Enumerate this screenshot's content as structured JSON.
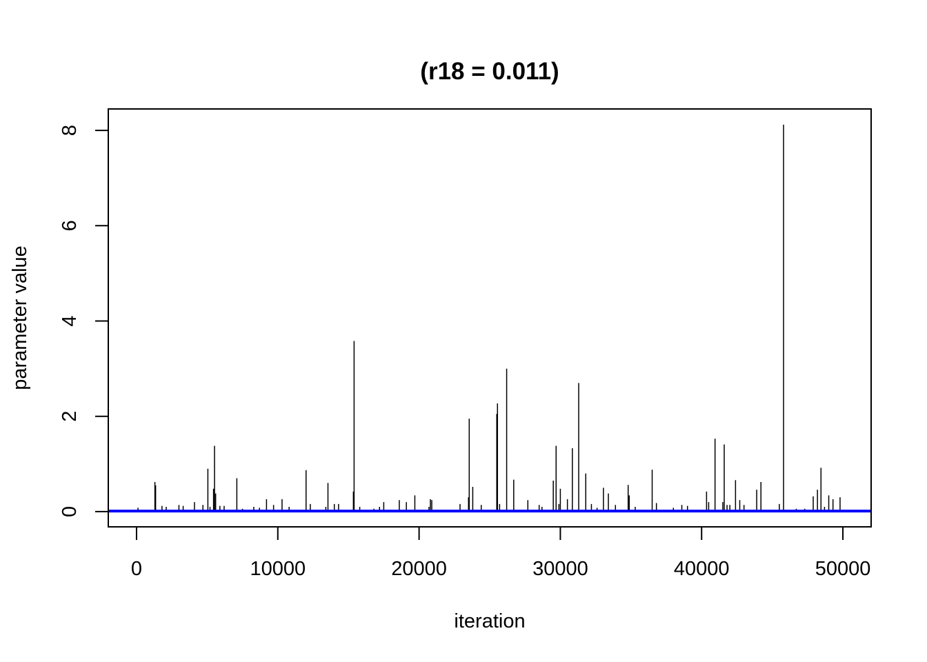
{
  "chart_data": {
    "type": "line",
    "title": "(r18 = 0.011)",
    "xlabel": "iteration",
    "ylabel": "parameter value",
    "xlim": [
      -2000,
      52000
    ],
    "ylim": [
      -0.32,
      8.45
    ],
    "x_ticks": [
      0,
      10000,
      20000,
      30000,
      40000,
      50000
    ],
    "x_tick_labels": [
      "0",
      "10000",
      "20000",
      "30000",
      "40000",
      "50000"
    ],
    "y_ticks": [
      0,
      2,
      4,
      6,
      8
    ],
    "y_tick_labels": [
      "0",
      "2",
      "4",
      "6",
      "8"
    ],
    "grid": false,
    "legend": "none",
    "series": [
      {
        "color": "#000000",
        "n_iterations": 50000,
        "baseline": 0.011,
        "spikes": [
          [
            100,
            0.08
          ],
          [
            1300,
            0.62
          ],
          [
            1350,
            0.55
          ],
          [
            1800,
            0.12
          ],
          [
            2100,
            0.1
          ],
          [
            3000,
            0.14
          ],
          [
            3300,
            0.12
          ],
          [
            4100,
            0.2
          ],
          [
            4700,
            0.14
          ],
          [
            5050,
            0.9
          ],
          [
            5200,
            0.1
          ],
          [
            5450,
            0.48
          ],
          [
            5520,
            1.38
          ],
          [
            5600,
            0.38
          ],
          [
            5900,
            0.12
          ],
          [
            6200,
            0.12
          ],
          [
            7100,
            0.7
          ],
          [
            7500,
            0.06
          ],
          [
            8300,
            0.1
          ],
          [
            8700,
            0.08
          ],
          [
            9200,
            0.26
          ],
          [
            9700,
            0.14
          ],
          [
            10300,
            0.26
          ],
          [
            10800,
            0.1
          ],
          [
            12000,
            0.87
          ],
          [
            12300,
            0.16
          ],
          [
            13400,
            0.1
          ],
          [
            13550,
            0.6
          ],
          [
            14000,
            0.16
          ],
          [
            14300,
            0.16
          ],
          [
            15350,
            0.42
          ],
          [
            15400,
            3.58
          ],
          [
            15800,
            0.1
          ],
          [
            16800,
            0.06
          ],
          [
            17200,
            0.1
          ],
          [
            17500,
            0.2
          ],
          [
            18600,
            0.24
          ],
          [
            19100,
            0.2
          ],
          [
            19700,
            0.34
          ],
          [
            20700,
            0.1
          ],
          [
            20800,
            0.26
          ],
          [
            20900,
            0.24
          ],
          [
            22900,
            0.16
          ],
          [
            23500,
            0.3
          ],
          [
            23550,
            1.95
          ],
          [
            23800,
            0.52
          ],
          [
            24400,
            0.14
          ],
          [
            25500,
            2.05
          ],
          [
            25550,
            2.27
          ],
          [
            25700,
            0.16
          ],
          [
            26200,
            3.0
          ],
          [
            26700,
            0.67
          ],
          [
            27700,
            0.24
          ],
          [
            28500,
            0.14
          ],
          [
            28700,
            0.1
          ],
          [
            29500,
            0.65
          ],
          [
            29700,
            1.38
          ],
          [
            29900,
            0.16
          ],
          [
            30000,
            0.48
          ],
          [
            30500,
            0.26
          ],
          [
            30850,
            1.33
          ],
          [
            31300,
            2.7
          ],
          [
            31800,
            0.8
          ],
          [
            32200,
            0.16
          ],
          [
            32600,
            0.08
          ],
          [
            33050,
            0.5
          ],
          [
            33400,
            0.38
          ],
          [
            33900,
            0.14
          ],
          [
            34800,
            0.56
          ],
          [
            34880,
            0.34
          ],
          [
            35300,
            0.1
          ],
          [
            36500,
            0.88
          ],
          [
            36800,
            0.18
          ],
          [
            38000,
            0.08
          ],
          [
            38600,
            0.14
          ],
          [
            39000,
            0.12
          ],
          [
            40350,
            0.42
          ],
          [
            40500,
            0.2
          ],
          [
            40950,
            1.53
          ],
          [
            41500,
            0.2
          ],
          [
            41600,
            1.41
          ],
          [
            41800,
            0.14
          ],
          [
            42000,
            0.14
          ],
          [
            42400,
            0.66
          ],
          [
            42700,
            0.24
          ],
          [
            43000,
            0.14
          ],
          [
            43900,
            0.46
          ],
          [
            44200,
            0.62
          ],
          [
            45500,
            0.16
          ],
          [
            45800,
            8.12
          ],
          [
            46700,
            0.06
          ],
          [
            47300,
            0.06
          ],
          [
            47900,
            0.32
          ],
          [
            48200,
            0.46
          ],
          [
            48450,
            0.92
          ],
          [
            48700,
            0.1
          ],
          [
            49000,
            0.34
          ],
          [
            49300,
            0.26
          ],
          [
            49800,
            0.3
          ]
        ]
      },
      {
        "color": "#0000FF",
        "type": "hline",
        "y": 0.011
      }
    ]
  }
}
